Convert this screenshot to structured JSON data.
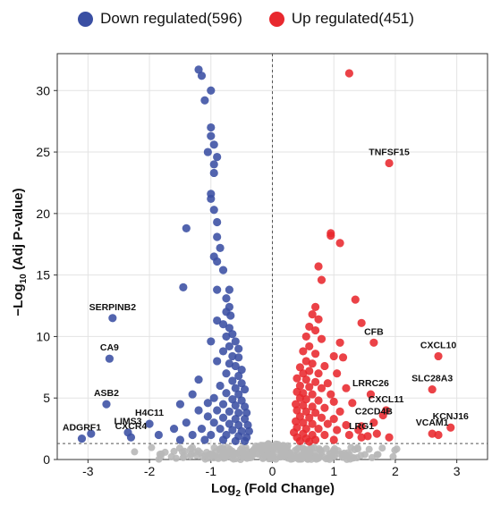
{
  "legend": {
    "down_label": "Down regulated(596)",
    "up_label": "Up regulated(451)"
  },
  "colors": {
    "down": "#3a4fa3",
    "up": "#e8282e",
    "ns": "#b8b8b8",
    "grid": "#e3e3e3"
  },
  "chart_data": {
    "type": "scatter",
    "title": "",
    "xlabel_main": "Log",
    "xlabel_sub": "2",
    "xlabel_rest": " (Fold Change)",
    "ylabel_main": "−Log",
    "ylabel_sub": "10",
    "ylabel_rest": " (Adj P-value)",
    "xlim": [
      -3.5,
      3.5
    ],
    "ylim": [
      0,
      33
    ],
    "xticks": [
      -3,
      -2,
      -1,
      0,
      1,
      2,
      3
    ],
    "yticks": [
      0,
      5,
      10,
      15,
      20,
      25,
      30
    ],
    "threshold_y": 1.3,
    "threshold_x": 0,
    "grid": true,
    "legend_position": "top",
    "series": [
      {
        "name": "Down regulated(596)",
        "points": [
          [
            -1.2,
            31.7
          ],
          [
            -1.15,
            31.2
          ],
          [
            -1.0,
            30.0
          ],
          [
            -1.1,
            29.2
          ],
          [
            -1.0,
            27.0
          ],
          [
            -1.0,
            26.3
          ],
          [
            -0.95,
            25.6
          ],
          [
            -1.05,
            25.0
          ],
          [
            -0.9,
            24.6
          ],
          [
            -0.95,
            24.0
          ],
          [
            -0.95,
            23.3
          ],
          [
            -1.0,
            21.6
          ],
          [
            -1.0,
            21.2
          ],
          [
            -0.95,
            20.3
          ],
          [
            -0.9,
            19.3
          ],
          [
            -1.4,
            18.8
          ],
          [
            -0.9,
            18.1
          ],
          [
            -0.85,
            17.2
          ],
          [
            -0.95,
            16.5
          ],
          [
            -0.9,
            16.1
          ],
          [
            -0.8,
            15.4
          ],
          [
            -1.45,
            14.0
          ],
          [
            -0.9,
            13.8
          ],
          [
            -0.7,
            13.8
          ],
          [
            -0.75,
            13.1
          ],
          [
            -0.7,
            12.4
          ],
          [
            -0.75,
            12.0
          ],
          [
            -0.68,
            11.7
          ],
          [
            -0.9,
            11.3
          ],
          [
            -0.8,
            11.0
          ],
          [
            -0.7,
            10.7
          ],
          [
            -0.65,
            10.2
          ],
          [
            -0.75,
            10.0
          ],
          [
            -1.0,
            9.6
          ],
          [
            -0.6,
            9.6
          ],
          [
            -0.7,
            9.2
          ],
          [
            -0.55,
            9.0
          ],
          [
            -0.8,
            8.8
          ],
          [
            -0.65,
            8.4
          ],
          [
            -0.55,
            8.3
          ],
          [
            -0.9,
            8.0
          ],
          [
            -0.7,
            7.8
          ],
          [
            -0.6,
            7.6
          ],
          [
            -0.5,
            7.3
          ],
          [
            -0.75,
            7.0
          ],
          [
            -0.55,
            6.8
          ],
          [
            -1.2,
            6.5
          ],
          [
            -0.65,
            6.4
          ],
          [
            -0.5,
            6.2
          ],
          [
            -0.85,
            6.0
          ],
          [
            -0.6,
            5.8
          ],
          [
            -0.45,
            5.7
          ],
          [
            -1.3,
            5.3
          ],
          [
            -0.75,
            5.4
          ],
          [
            -0.55,
            5.3
          ],
          [
            -0.95,
            5.0
          ],
          [
            -0.65,
            4.9
          ],
          [
            -0.5,
            4.8
          ],
          [
            -1.5,
            4.5
          ],
          [
            -1.05,
            4.6
          ],
          [
            -0.8,
            4.5
          ],
          [
            -0.6,
            4.4
          ],
          [
            -0.45,
            4.3
          ],
          [
            -1.2,
            4.0
          ],
          [
            -0.9,
            4.0
          ],
          [
            -0.7,
            3.9
          ],
          [
            -0.55,
            3.8
          ],
          [
            -0.42,
            3.8
          ],
          [
            -1.05,
            3.5
          ],
          [
            -0.8,
            3.4
          ],
          [
            -0.6,
            3.3
          ],
          [
            -0.45,
            3.3
          ],
          [
            -1.4,
            3.0
          ],
          [
            -0.95,
            3.0
          ],
          [
            -0.7,
            2.9
          ],
          [
            -0.55,
            2.8
          ],
          [
            -0.4,
            2.8
          ],
          [
            -1.6,
            2.5
          ],
          [
            -1.15,
            2.5
          ],
          [
            -0.85,
            2.5
          ],
          [
            -0.65,
            2.4
          ],
          [
            -0.5,
            2.3
          ],
          [
            -0.38,
            2.3
          ],
          [
            -1.85,
            2.0
          ],
          [
            -1.3,
            2.0
          ],
          [
            -1.0,
            2.0
          ],
          [
            -0.75,
            2.0
          ],
          [
            -0.55,
            1.9
          ],
          [
            -0.42,
            1.8
          ],
          [
            -1.5,
            1.6
          ],
          [
            -1.1,
            1.6
          ],
          [
            -0.8,
            1.6
          ],
          [
            -0.6,
            1.5
          ],
          [
            -0.45,
            1.5
          ],
          [
            -2.6,
            11.5
          ],
          [
            -2.65,
            8.2
          ],
          [
            -2.7,
            4.5
          ],
          [
            -3.1,
            1.7
          ],
          [
            -2.95,
            2.1
          ],
          [
            -2.35,
            2.2
          ],
          [
            -2.3,
            1.8
          ],
          [
            -2.0,
            2.9
          ]
        ]
      },
      {
        "name": "Up regulated(451)",
        "points": [
          [
            1.25,
            31.4
          ],
          [
            1.9,
            24.1
          ],
          [
            0.95,
            18.4
          ],
          [
            0.95,
            18.2
          ],
          [
            1.1,
            17.6
          ],
          [
            0.75,
            15.7
          ],
          [
            0.8,
            14.6
          ],
          [
            1.35,
            13.0
          ],
          [
            0.7,
            12.4
          ],
          [
            0.65,
            11.8
          ],
          [
            0.75,
            11.4
          ],
          [
            1.45,
            11.1
          ],
          [
            0.6,
            10.8
          ],
          [
            0.7,
            10.5
          ],
          [
            0.55,
            10.0
          ],
          [
            0.8,
            9.8
          ],
          [
            1.1,
            9.5
          ],
          [
            0.6,
            9.2
          ],
          [
            0.5,
            8.8
          ],
          [
            0.7,
            8.6
          ],
          [
            1.0,
            8.4
          ],
          [
            1.15,
            8.3
          ],
          [
            0.55,
            8.0
          ],
          [
            0.65,
            7.8
          ],
          [
            0.45,
            7.5
          ],
          [
            0.85,
            7.6
          ],
          [
            0.6,
            7.2
          ],
          [
            0.5,
            7.0
          ],
          [
            0.75,
            7.0
          ],
          [
            1.05,
            7.0
          ],
          [
            0.4,
            6.6
          ],
          [
            0.55,
            6.5
          ],
          [
            0.7,
            6.3
          ],
          [
            0.9,
            6.2
          ],
          [
            0.45,
            6.0
          ],
          [
            0.6,
            5.9
          ],
          [
            0.8,
            5.8
          ],
          [
            1.2,
            5.8
          ],
          [
            0.4,
            5.5
          ],
          [
            0.5,
            5.4
          ],
          [
            0.65,
            5.3
          ],
          [
            0.95,
            5.3
          ],
          [
            0.45,
            5.0
          ],
          [
            0.55,
            4.9
          ],
          [
            0.75,
            4.8
          ],
          [
            1.0,
            4.7
          ],
          [
            1.3,
            4.6
          ],
          [
            0.38,
            4.5
          ],
          [
            0.5,
            4.4
          ],
          [
            0.65,
            4.3
          ],
          [
            0.85,
            4.2
          ],
          [
            0.4,
            4.0
          ],
          [
            0.55,
            3.9
          ],
          [
            0.7,
            3.8
          ],
          [
            1.1,
            3.9
          ],
          [
            0.45,
            3.5
          ],
          [
            0.6,
            3.4
          ],
          [
            0.8,
            3.4
          ],
          [
            1.0,
            3.3
          ],
          [
            0.38,
            3.1
          ],
          [
            0.5,
            3.0
          ],
          [
            0.65,
            2.9
          ],
          [
            0.9,
            2.9
          ],
          [
            1.2,
            2.8
          ],
          [
            0.4,
            2.6
          ],
          [
            0.55,
            2.5
          ],
          [
            0.75,
            2.5
          ],
          [
            1.05,
            2.4
          ],
          [
            0.35,
            2.2
          ],
          [
            0.5,
            2.1
          ],
          [
            0.65,
            2.0
          ],
          [
            0.85,
            2.0
          ],
          [
            1.25,
            2.0
          ],
          [
            0.4,
            1.8
          ],
          [
            0.55,
            1.7
          ],
          [
            0.7,
            1.6
          ],
          [
            1.0,
            1.6
          ],
          [
            0.45,
            1.5
          ],
          [
            0.6,
            1.45
          ],
          [
            1.4,
            2.4
          ],
          [
            1.45,
            2.7
          ],
          [
            1.55,
            1.9
          ],
          [
            1.7,
            2.1
          ],
          [
            1.9,
            1.8
          ],
          [
            1.6,
            5.3
          ],
          [
            1.65,
            9.5
          ],
          [
            2.7,
            8.4
          ],
          [
            2.6,
            5.7
          ],
          [
            1.85,
            4.0
          ],
          [
            1.8,
            3.6
          ],
          [
            1.65,
            3.0
          ],
          [
            1.45,
            1.8
          ],
          [
            2.6,
            2.1
          ],
          [
            2.7,
            2.0
          ],
          [
            2.9,
            2.6
          ]
        ]
      }
    ],
    "annotations": [
      {
        "text": "SERPINB2",
        "x": -2.6,
        "y": 11.5
      },
      {
        "text": "CA9",
        "x": -2.65,
        "y": 8.2
      },
      {
        "text": "ASB2",
        "x": -2.7,
        "y": 4.5
      },
      {
        "text": "ADGRF1",
        "x": -3.1,
        "y": 1.7
      },
      {
        "text": "H4C11",
        "x": -2.0,
        "y": 2.9
      },
      {
        "text": "LIMS3",
        "x": -2.35,
        "y": 2.2
      },
      {
        "text": "CXCR4",
        "x": -2.3,
        "y": 1.8
      },
      {
        "text": "TNFSF15",
        "x": 1.9,
        "y": 24.1
      },
      {
        "text": "CFB",
        "x": 1.65,
        "y": 9.5
      },
      {
        "text": "CXCL10",
        "x": 2.7,
        "y": 8.4
      },
      {
        "text": "LRRC26",
        "x": 1.6,
        "y": 5.3
      },
      {
        "text": "SLC28A3",
        "x": 2.6,
        "y": 5.7
      },
      {
        "text": "CXCL11",
        "x": 1.85,
        "y": 4.0
      },
      {
        "text": "C2CD4B",
        "x": 1.65,
        "y": 3.0
      },
      {
        "text": "LRG1",
        "x": 1.45,
        "y": 1.8
      },
      {
        "text": "KCNJ16",
        "x": 2.9,
        "y": 2.6
      },
      {
        "text": "VCAM1",
        "x": 2.6,
        "y": 2.1
      }
    ]
  }
}
